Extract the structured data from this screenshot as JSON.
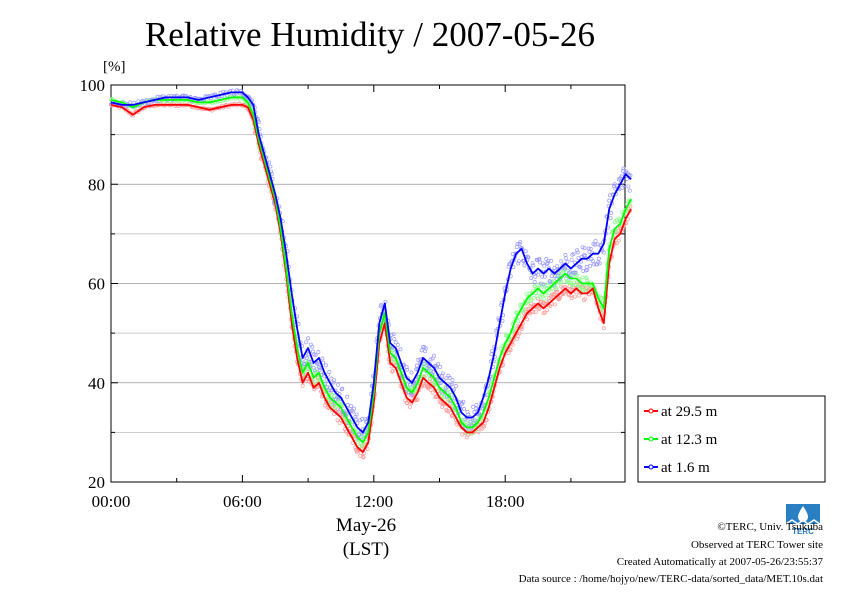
{
  "chart_data": {
    "type": "line",
    "title": "Relative Humidity / 2007-05-26",
    "ylabel": "[%]",
    "xlabel": "May-26",
    "xlabel2": "(LST)",
    "ylim": [
      20,
      100
    ],
    "xlim": [
      0,
      24
    ],
    "x_ticks": [
      "00:00",
      "06:00",
      "12:00",
      "18:00"
    ],
    "y_ticks": [
      "20",
      "40",
      "60",
      "80",
      "100"
    ],
    "grid": "horizontal",
    "legend_position": "right",
    "x": [
      0,
      0.5,
      1,
      1.5,
      2,
      2.5,
      3,
      3.5,
      4,
      4.5,
      5,
      5.5,
      6,
      6.25,
      6.5,
      6.75,
      7,
      7.25,
      7.5,
      7.75,
      8,
      8.25,
      8.5,
      8.75,
      9,
      9.25,
      9.5,
      9.75,
      10,
      10.25,
      10.5,
      10.75,
      11,
      11.25,
      11.5,
      11.75,
      12,
      12.25,
      12.5,
      12.75,
      13,
      13.25,
      13.5,
      13.75,
      14,
      14.25,
      14.5,
      14.75,
      15,
      15.25,
      15.5,
      15.75,
      16,
      16.25,
      16.5,
      16.75,
      17,
      17.25,
      17.5,
      17.75,
      18,
      18.25,
      18.5,
      18.75,
      19,
      19.25,
      19.5,
      19.75,
      20,
      20.25,
      20.5,
      20.75,
      21,
      21.25,
      21.5,
      21.75,
      22,
      22.25,
      22.5,
      22.75,
      23,
      23.25,
      23.5,
      23.75
    ],
    "series": [
      {
        "name": "at 29.5 m",
        "color": "#ff0000",
        "values": [
          96,
          95.5,
          94,
          95.5,
          96,
          96,
          96,
          96,
          95.5,
          95,
          95.5,
          96,
          96,
          95.5,
          93,
          88,
          84,
          80,
          76,
          70,
          62,
          52,
          45,
          40,
          42,
          39,
          40,
          37,
          35,
          34,
          33,
          31,
          29,
          27,
          26,
          28,
          36,
          48,
          52,
          44,
          43,
          40,
          37,
          36,
          38,
          41,
          40,
          39,
          37,
          36,
          35,
          33,
          31,
          30,
          30,
          31,
          32,
          35,
          39,
          43,
          46,
          48,
          50,
          52,
          54,
          55,
          56,
          55,
          56,
          57,
          58,
          59,
          58,
          59,
          58,
          58,
          59,
          55,
          52,
          64,
          69,
          70,
          73,
          75
        ]
      },
      {
        "name": "at 12.3 m",
        "color": "#00ff00",
        "values": [
          97,
          96.5,
          95.5,
          96.5,
          97,
          97,
          97,
          97,
          96.5,
          96.5,
          97,
          97.5,
          97.5,
          96.5,
          94,
          89,
          85,
          81,
          77,
          71,
          63,
          54,
          47,
          42,
          44,
          41,
          42,
          39,
          37,
          36,
          35,
          33,
          31,
          29,
          28,
          30,
          38,
          50,
          54,
          46,
          45,
          42,
          39,
          38,
          40,
          43,
          42,
          41,
          39,
          38,
          37,
          35,
          32,
          31,
          31,
          32,
          34,
          37,
          41,
          45,
          48,
          50,
          53,
          55,
          57,
          58,
          59,
          58,
          59,
          60,
          61,
          62,
          61,
          61,
          60,
          60,
          60,
          57,
          55,
          67,
          71,
          72,
          75,
          77
        ]
      },
      {
        "name": "at 1.6 m",
        "color": "#0000ff",
        "values": [
          96.5,
          96,
          96,
          96.5,
          97,
          97.5,
          97.5,
          97.5,
          97,
          97.5,
          98,
          98.5,
          98.5,
          97.5,
          96,
          90,
          86,
          82,
          78,
          73,
          66,
          58,
          51,
          45,
          47,
          44,
          45,
          42,
          40,
          38,
          37,
          35,
          33,
          31,
          30,
          32,
          40,
          52,
          56,
          48,
          47,
          44,
          41,
          40,
          42,
          45,
          44,
          43,
          41,
          40,
          39,
          37,
          34,
          33,
          33,
          34,
          37,
          41,
          46,
          52,
          58,
          63,
          66,
          67,
          64,
          62,
          63,
          62,
          63,
          62,
          63,
          64,
          63,
          64,
          65,
          65,
          66,
          66,
          68,
          75,
          78,
          80,
          82,
          81
        ]
      }
    ]
  },
  "credits": {
    "copyright": "©TERC, Univ. Tsukuba",
    "observed": "Observed at TERC Tower site",
    "created": "Created Automatically at 2007-05-26/23:55:37",
    "source": "Data source : /home/hojyo/new/TERC-data/sorted_data/MET.10s.dat"
  },
  "logo": {
    "text": "TERC",
    "color": "#2a7fc2"
  }
}
